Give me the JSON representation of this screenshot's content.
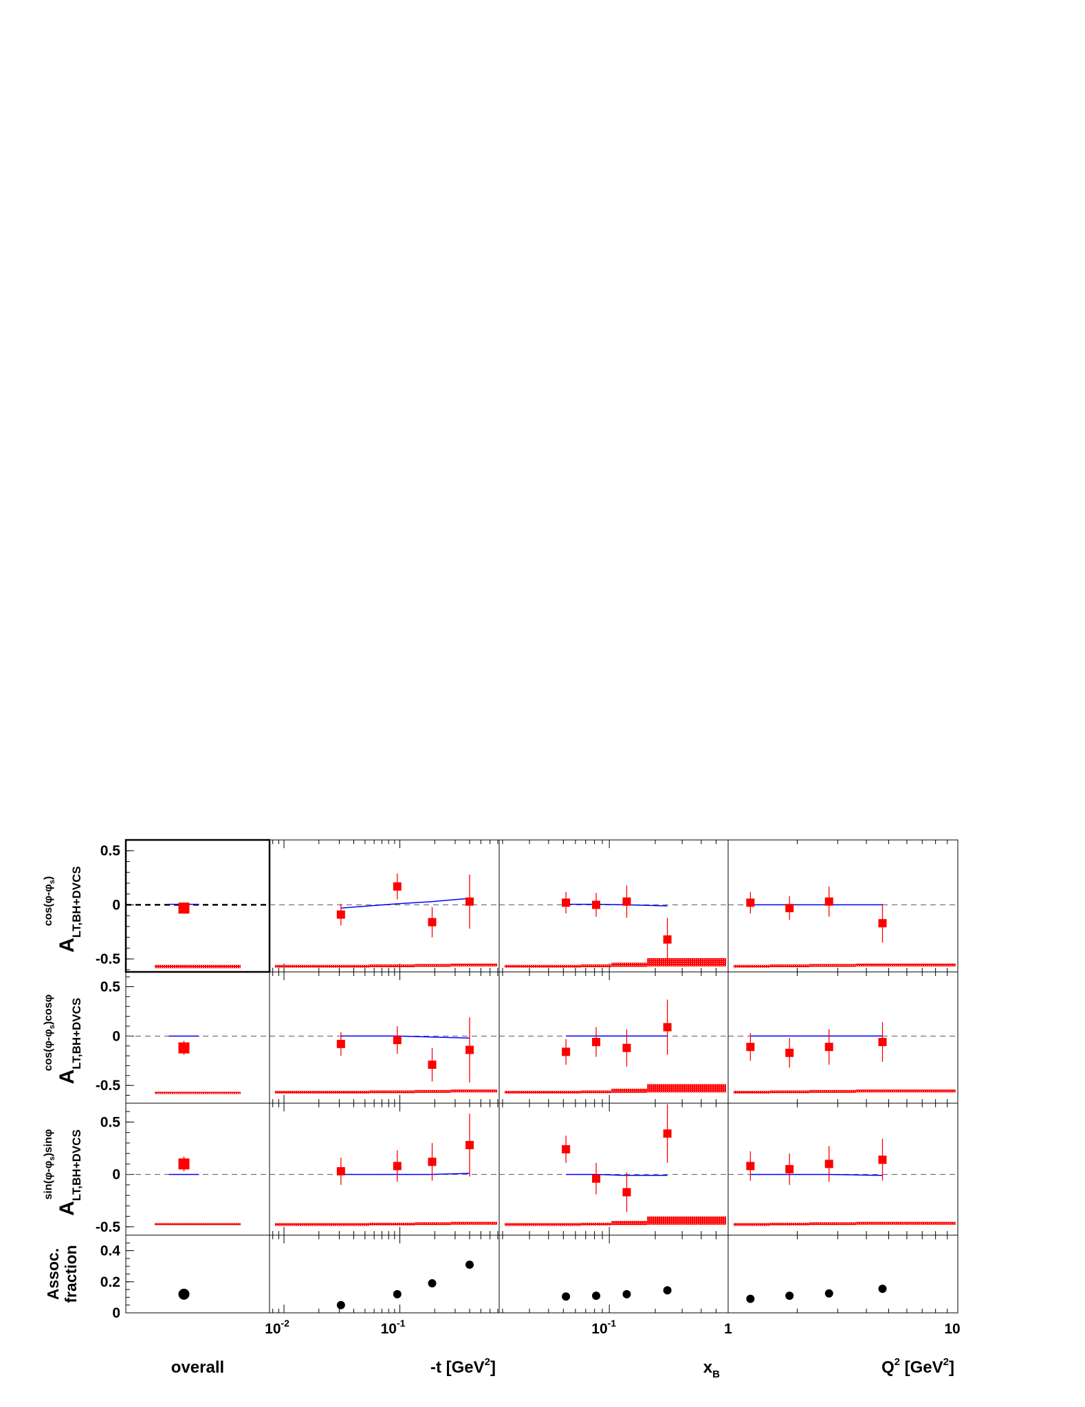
{
  "chart_data": {
    "type": "scatter",
    "columns": [
      {
        "id": "overall",
        "label": "overall",
        "scale": "none",
        "ticks": [],
        "tick_labels": []
      },
      {
        "id": "t",
        "label_main": "-t [GeV",
        "label_sup": "2",
        "label_end": "]",
        "scale": "log",
        "xlim": [
          0.0075,
          0.72
        ],
        "ticks": [
          0.01,
          0.1
        ],
        "tick_labels_base": [
          "10",
          "10"
        ],
        "tick_labels_exp": [
          "-2",
          "-1"
        ]
      },
      {
        "id": "xB",
        "label_main": "x",
        "label_sub": "B",
        "scale": "log",
        "xlim": [
          0.019,
          0.6
        ],
        "ticks": [
          0.1
        ],
        "tick_labels": [
          "10"
        ],
        "tick_labels_exp": [
          "-1"
        ]
      },
      {
        "id": "Q2",
        "label_main": "Q",
        "label_sup": "2",
        "label_mid": " [GeV",
        "label_sup2": "2",
        "label_end": "]",
        "scale": "log",
        "xlim": [
          1.0,
          10.0
        ],
        "ticks": [
          1,
          10
        ],
        "tick_labels": [
          "1",
          "10"
        ]
      }
    ],
    "rows": [
      {
        "id": "cos_phi_minus_phis",
        "ylabel_base": "A",
        "ylabel_sub": "LT,BH+DVCS",
        "ylabel_sup": "cos(φ-φ",
        "ylabel_sup_sub": "s",
        "ylabel_sup_end": ")",
        "ylim": [
          -0.62,
          0.6
        ],
        "yticks": [
          0.5,
          0,
          -0.5
        ],
        "ytick_labels": [
          "0.5",
          "0",
          "-0.5"
        ],
        "overall": {
          "value": -0.03,
          "err": 0.05,
          "sys_band": [
            -0.585,
            -0.555
          ],
          "model": 0.005
        },
        "t": {
          "x": [
            0.031,
            0.095,
            0.19,
            0.4
          ],
          "y": [
            -0.09,
            0.17,
            -0.16,
            0.03
          ],
          "err": [
            0.1,
            0.12,
            0.14,
            0.25
          ],
          "model": [
            -0.03,
            0.01,
            0.03,
            0.06
          ]
        },
        "xB": {
          "x": [
            0.052,
            0.082,
            0.13,
            0.24
          ],
          "y": [
            0.02,
            0.0,
            0.03,
            -0.32
          ],
          "err": [
            0.1,
            0.11,
            0.15,
            0.2
          ],
          "model": [
            0.005,
            0.005,
            0.0,
            -0.01
          ]
        },
        "Q2": {
          "x": [
            1.25,
            1.85,
            2.75,
            4.7
          ],
          "y": [
            0.02,
            -0.03,
            0.03,
            -0.17
          ],
          "err": [
            0.1,
            0.11,
            0.14,
            0.18
          ],
          "model": [
            0.0,
            0.0,
            0.0,
            0.0
          ]
        }
      },
      {
        "id": "cos_cos",
        "ylabel_base": "A",
        "ylabel_sub": "LT,BH+DVCS",
        "ylabel_sup": "cos(φ-φ",
        "ylabel_sup_sub": "s",
        "ylabel_sup_end": ")cosφ",
        "ylim": [
          -0.68,
          0.65
        ],
        "yticks": [
          0.5,
          0,
          -0.5
        ],
        "ytick_labels": [
          "0.5",
          "0",
          "-0.5"
        ],
        "overall": {
          "value": -0.12,
          "err": 0.07,
          "sys_band": [
            -0.58,
            -0.565
          ],
          "model": 0.0
        },
        "t": {
          "x": [
            0.031,
            0.095,
            0.19,
            0.4
          ],
          "y": [
            -0.08,
            -0.04,
            -0.29,
            -0.14
          ],
          "err": [
            0.12,
            0.14,
            0.17,
            0.33
          ],
          "model": [
            0.0,
            0.0,
            -0.01,
            -0.02
          ]
        },
        "xB": {
          "x": [
            0.052,
            0.082,
            0.13,
            0.24
          ],
          "y": [
            -0.16,
            -0.06,
            -0.12,
            0.09
          ],
          "err": [
            0.13,
            0.15,
            0.19,
            0.28
          ],
          "model": [
            0.0,
            0.0,
            0.0,
            0.0
          ]
        },
        "Q2": {
          "x": [
            1.25,
            1.85,
            2.75,
            4.7
          ],
          "y": [
            -0.11,
            -0.17,
            -0.11,
            -0.06
          ],
          "err": [
            0.14,
            0.15,
            0.18,
            0.2
          ],
          "model": [
            0.0,
            0.0,
            0.0,
            0.0
          ]
        }
      },
      {
        "id": "sin_sin",
        "ylabel_base": "A",
        "ylabel_sub": "LT,BH+DVCS",
        "ylabel_sup": "sin(φ-φ",
        "ylabel_sup_sub": "s",
        "ylabel_sup_end": ")sinφ",
        "ylim": [
          -0.58,
          0.68
        ],
        "yticks": [
          0.5,
          0,
          -0.5
        ],
        "ytick_labels": [
          "0.5",
          "0",
          "-0.5"
        ],
        "overall": {
          "value": 0.1,
          "err": 0.07,
          "sys_band": [
            -0.48,
            -0.465
          ],
          "model": 0.0
        },
        "t": {
          "x": [
            0.031,
            0.095,
            0.19,
            0.4
          ],
          "y": [
            0.03,
            0.08,
            0.12,
            0.28
          ],
          "err": [
            0.13,
            0.15,
            0.18,
            0.3
          ],
          "model": [
            0.0,
            0.0,
            0.0,
            0.01
          ]
        },
        "xB": {
          "x": [
            0.052,
            0.082,
            0.13,
            0.24
          ],
          "y": [
            0.24,
            -0.04,
            -0.17,
            0.39
          ],
          "err": [
            0.13,
            0.15,
            0.19,
            0.28
          ],
          "model": [
            0.0,
            0.0,
            -0.01,
            -0.01
          ]
        },
        "Q2": {
          "x": [
            1.25,
            1.85,
            2.75,
            4.7
          ],
          "y": [
            0.08,
            0.05,
            0.1,
            0.14
          ],
          "err": [
            0.14,
            0.15,
            0.17,
            0.2
          ],
          "model": [
            0.0,
            0.0,
            0.0,
            -0.01
          ]
        }
      },
      {
        "id": "assoc",
        "ylabel_line1": "Assoc.",
        "ylabel_line2": "fraction",
        "ylim": [
          0,
          0.5
        ],
        "yticks": [
          0.4,
          0.2,
          0
        ],
        "ytick_labels": [
          "0.4",
          "0.2",
          "0"
        ],
        "overall": {
          "value": 0.12
        },
        "t": {
          "x": [
            0.031,
            0.095,
            0.19,
            0.4
          ],
          "y": [
            0.05,
            0.12,
            0.19,
            0.31
          ]
        },
        "xB": {
          "x": [
            0.052,
            0.082,
            0.13,
            0.24
          ],
          "y": [
            0.105,
            0.11,
            0.12,
            0.145
          ]
        },
        "Q2": {
          "x": [
            1.25,
            1.85,
            2.75,
            4.7
          ],
          "y": [
            0.09,
            0.11,
            0.125,
            0.155
          ]
        }
      }
    ],
    "colors": {
      "data": "#ff0000",
      "model": "#0000ff",
      "band": "#ff0000",
      "assoc": "#000000",
      "zero_line": "#555555"
    }
  }
}
